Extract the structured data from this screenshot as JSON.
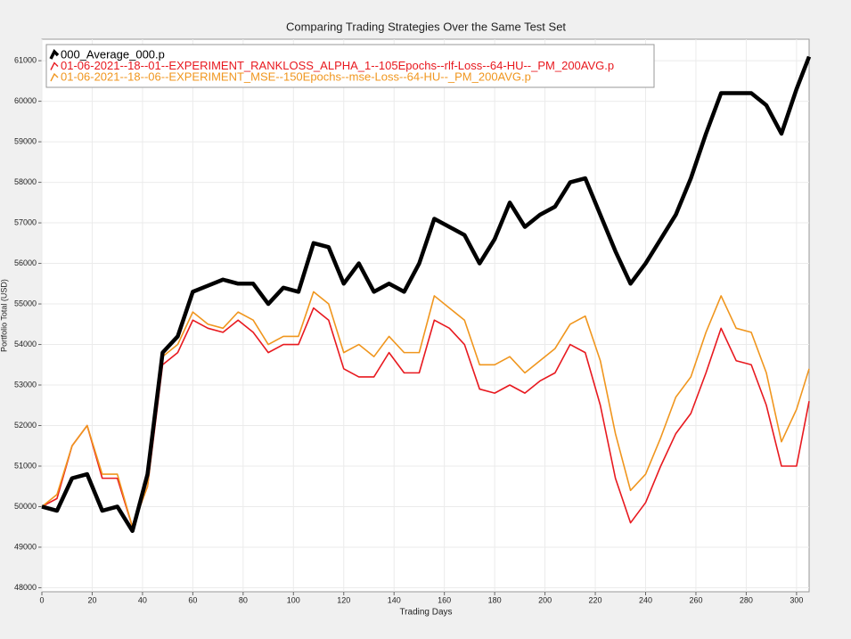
{
  "chart_data": {
    "type": "line",
    "title": "Comparing Trading Strategies Over the Same Test Set",
    "x_label": "Trading Days",
    "y_label": "Portfolio Total (USD)",
    "x": [
      0,
      6,
      12,
      18,
      24,
      30,
      36,
      42,
      48,
      54,
      60,
      66,
      72,
      78,
      84,
      90,
      96,
      102,
      108,
      114,
      120,
      126,
      132,
      138,
      144,
      150,
      156,
      162,
      168,
      174,
      180,
      186,
      192,
      198,
      204,
      210,
      216,
      222,
      228,
      234,
      240,
      246,
      252,
      258,
      264,
      270,
      276,
      282,
      288,
      294,
      300,
      305
    ],
    "series": [
      {
        "name": "000_Average_000.p",
        "color": "#000000",
        "width": 4.5,
        "values": [
          50000,
          49900,
          50700,
          50800,
          49900,
          50000,
          49400,
          50800,
          53800,
          54200,
          55300,
          55450,
          55600,
          55500,
          55500,
          55000,
          55400,
          55300,
          56500,
          56400,
          55500,
          56000,
          55300,
          55500,
          55300,
          56000,
          57100,
          56900,
          56700,
          56000,
          56600,
          57500,
          56900,
          57200,
          57400,
          58000,
          58100,
          57200,
          56300,
          55500,
          56000,
          56600,
          57200,
          58100,
          59200,
          60200,
          60200,
          60200,
          59900,
          59200,
          60300,
          61100
        ]
      },
      {
        "name": "01-06-2021--18--01--EXPERIMENT_RANKLOSS_ALPHA_1--105Epochs--rlf-Loss--64-HU--_PM_200AVG.p",
        "color": "#e8191f",
        "width": 1.6,
        "values": [
          50000,
          50200,
          51500,
          52000,
          50700,
          50700,
          49500,
          50500,
          53500,
          53800,
          54600,
          54400,
          54300,
          54600,
          54300,
          53800,
          54000,
          54000,
          54900,
          54600,
          53400,
          53200,
          53200,
          53800,
          53300,
          53300,
          54600,
          54400,
          54000,
          52900,
          52800,
          53000,
          52800,
          53100,
          53300,
          54000,
          53800,
          52500,
          50700,
          49600,
          50100,
          51000,
          51800,
          52300,
          53300,
          54400,
          53600,
          53500,
          52500,
          51000,
          51000,
          52600
        ]
      },
      {
        "name": "01-06-2021--18--06--EXPERIMENT_MSE--150Epochs--mse-Loss--64-HU--_PM_200AVG.p",
        "color": "#f0961e",
        "width": 1.6,
        "values": [
          50000,
          50300,
          51500,
          52000,
          50800,
          50800,
          49500,
          50500,
          53700,
          54000,
          54800,
          54500,
          54400,
          54800,
          54600,
          54000,
          54200,
          54200,
          55300,
          55000,
          53800,
          54000,
          53700,
          54200,
          53800,
          53800,
          55200,
          54900,
          54600,
          53500,
          53500,
          53700,
          53300,
          53600,
          53900,
          54500,
          54700,
          53600,
          51800,
          50400,
          50800,
          51700,
          52700,
          53200,
          54300,
          55200,
          54400,
          54300,
          53300,
          51600,
          52400,
          53400
        ]
      }
    ],
    "xlim": [
      0,
      305
    ],
    "ylim": [
      47900,
      61530
    ],
    "xticks": [
      0,
      20,
      40,
      60,
      80,
      100,
      120,
      140,
      160,
      180,
      200,
      220,
      240,
      260,
      280,
      300
    ],
    "yticks": [
      48000,
      49000,
      50000,
      51000,
      52000,
      53000,
      54000,
      55000,
      56000,
      57000,
      58000,
      59000,
      60000,
      61000
    ],
    "grid": true,
    "legend": "upper left"
  }
}
